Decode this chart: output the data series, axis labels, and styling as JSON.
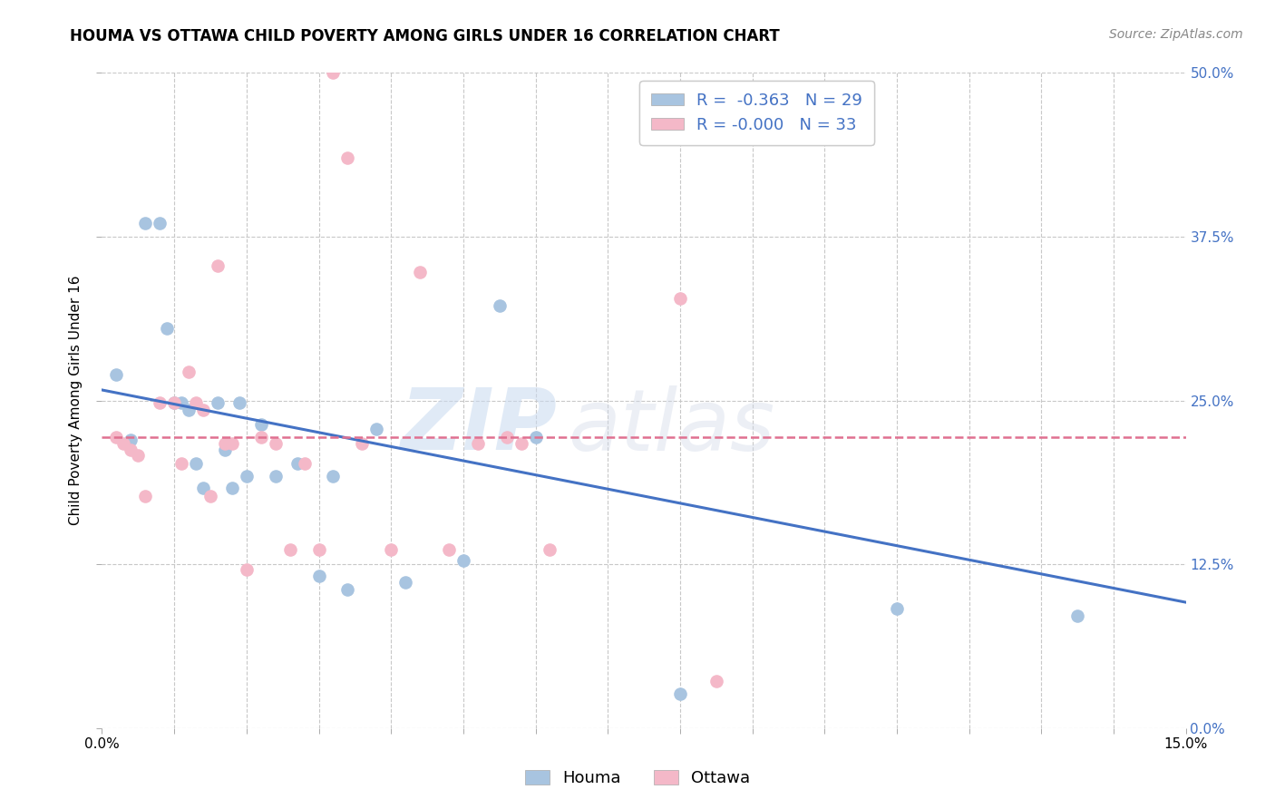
{
  "title": "HOUMA VS OTTAWA CHILD POVERTY AMONG GIRLS UNDER 16 CORRELATION CHART",
  "source": "Source: ZipAtlas.com",
  "ylabel": "Child Poverty Among Girls Under 16",
  "xlim": [
    0.0,
    0.15
  ],
  "ylim": [
    0.0,
    0.5
  ],
  "houma_color": "#a8c4e0",
  "ottawa_color": "#f4b8c8",
  "houma_line_color": "#4472c4",
  "ottawa_line_color": "#e07090",
  "background_color": "#ffffff",
  "grid_color": "#c8c8c8",
  "legend_color": "#4472c4",
  "houma_label": "Houma",
  "ottawa_label": "Ottawa",
  "houma_R": "-0.363",
  "houma_N": "29",
  "ottawa_R": "-0.000",
  "ottawa_N": "33",
  "houma_scatter_x": [
    0.002,
    0.004,
    0.006,
    0.008,
    0.009,
    0.01,
    0.011,
    0.012,
    0.013,
    0.014,
    0.016,
    0.017,
    0.018,
    0.019,
    0.02,
    0.022,
    0.024,
    0.027,
    0.03,
    0.032,
    0.034,
    0.038,
    0.042,
    0.05,
    0.055,
    0.06,
    0.08,
    0.11,
    0.135
  ],
  "houma_scatter_y": [
    0.27,
    0.22,
    0.385,
    0.385,
    0.305,
    0.248,
    0.248,
    0.243,
    0.202,
    0.183,
    0.248,
    0.212,
    0.183,
    0.248,
    0.192,
    0.232,
    0.192,
    0.202,
    0.116,
    0.192,
    0.106,
    0.228,
    0.111,
    0.128,
    0.322,
    0.222,
    0.026,
    0.091,
    0.086
  ],
  "ottawa_scatter_x": [
    0.002,
    0.003,
    0.004,
    0.005,
    0.006,
    0.008,
    0.01,
    0.011,
    0.012,
    0.013,
    0.014,
    0.015,
    0.016,
    0.017,
    0.018,
    0.02,
    0.022,
    0.024,
    0.026,
    0.028,
    0.03,
    0.032,
    0.034,
    0.036,
    0.04,
    0.044,
    0.048,
    0.052,
    0.056,
    0.058,
    0.062,
    0.08,
    0.085
  ],
  "ottawa_scatter_y": [
    0.222,
    0.217,
    0.212,
    0.208,
    0.177,
    0.248,
    0.248,
    0.202,
    0.272,
    0.248,
    0.243,
    0.177,
    0.353,
    0.217,
    0.217,
    0.121,
    0.222,
    0.217,
    0.136,
    0.202,
    0.136,
    0.5,
    0.435,
    0.217,
    0.136,
    0.348,
    0.136,
    0.217,
    0.222,
    0.217,
    0.136,
    0.328,
    0.036
  ],
  "houma_trend_x": [
    0.0,
    0.15
  ],
  "houma_trend_y": [
    0.258,
    0.096
  ],
  "ottawa_trend_x": [
    0.0,
    0.15
  ],
  "ottawa_trend_y": [
    0.222,
    0.222
  ],
  "watermark_zip": "ZIP",
  "watermark_atlas": "atlas",
  "x_minor_ticks": [
    0.01,
    0.02,
    0.03,
    0.04,
    0.05,
    0.06,
    0.07,
    0.08,
    0.09,
    0.1,
    0.11,
    0.12,
    0.13,
    0.14
  ],
  "y_tick_vals": [
    0.0,
    0.125,
    0.25,
    0.375,
    0.5
  ],
  "y_tick_labels": [
    "0.0%",
    "12.5%",
    "25.0%",
    "37.5%",
    "50.0%"
  ],
  "title_fontsize": 12,
  "axis_label_fontsize": 11,
  "tick_fontsize": 11,
  "source_fontsize": 10
}
